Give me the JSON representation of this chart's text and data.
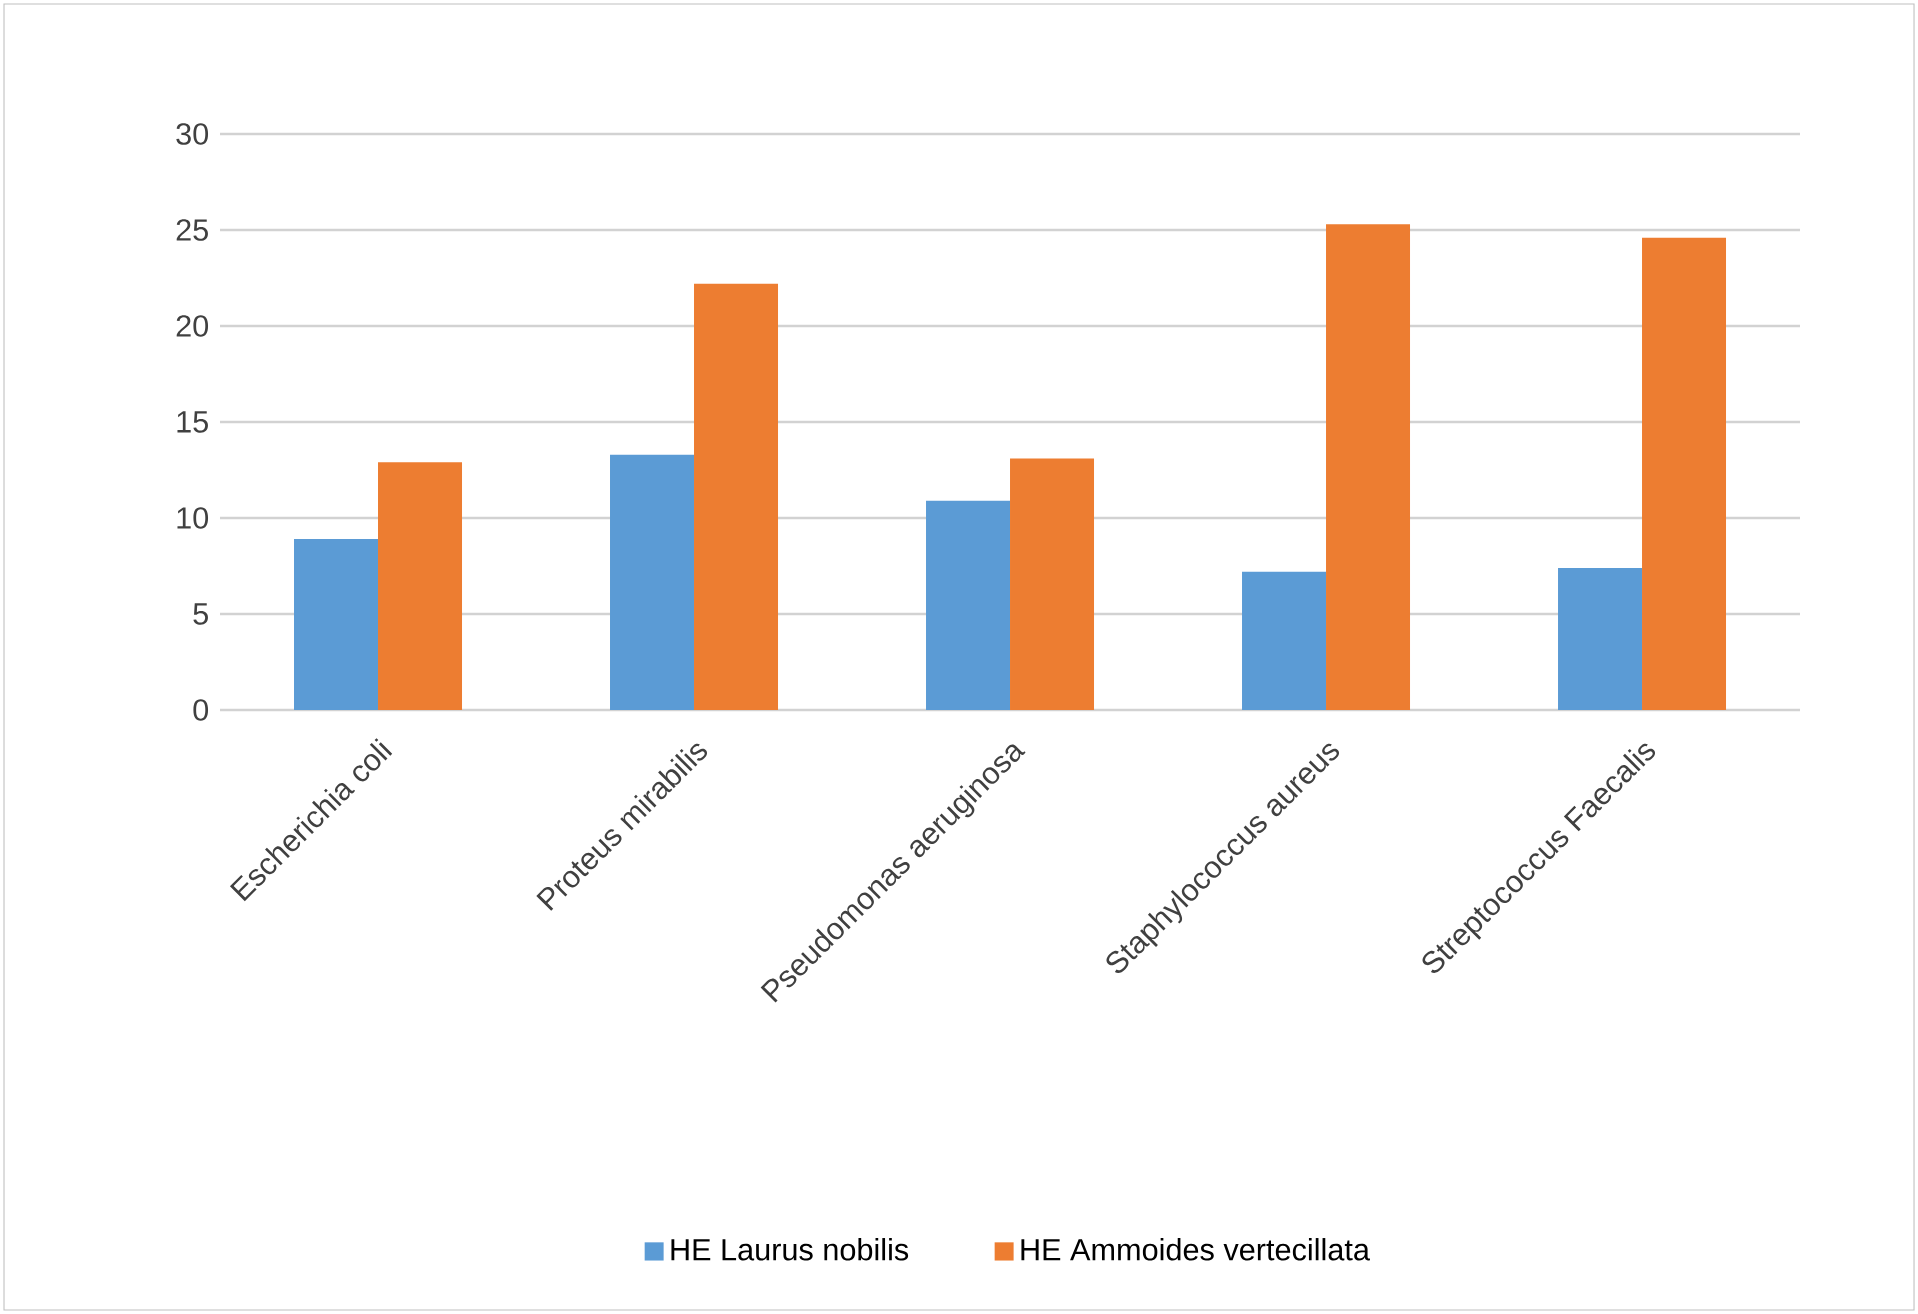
{
  "chart_data": {
    "type": "bar",
    "categories": [
      "Escherichia coli",
      "Proteus mirabilis",
      "Pseudomonas aeruginosa",
      "Staphylococcus aureus",
      "Streptococcus Faecalis"
    ],
    "series": [
      {
        "name": "HE Laurus nobilis",
        "color": "#5b9bd5",
        "values": [
          8.9,
          13.3,
          10.9,
          7.2,
          7.4
        ]
      },
      {
        "name": "HE Ammoides vertecillata",
        "color": "#ed7d31",
        "values": [
          12.9,
          22.2,
          13.1,
          25.3,
          24.6
        ]
      }
    ],
    "ylim": [
      0,
      30
    ],
    "yticks": [
      0,
      5,
      10,
      15,
      20,
      25,
      30
    ],
    "grid": "y",
    "legend": "bottom"
  }
}
